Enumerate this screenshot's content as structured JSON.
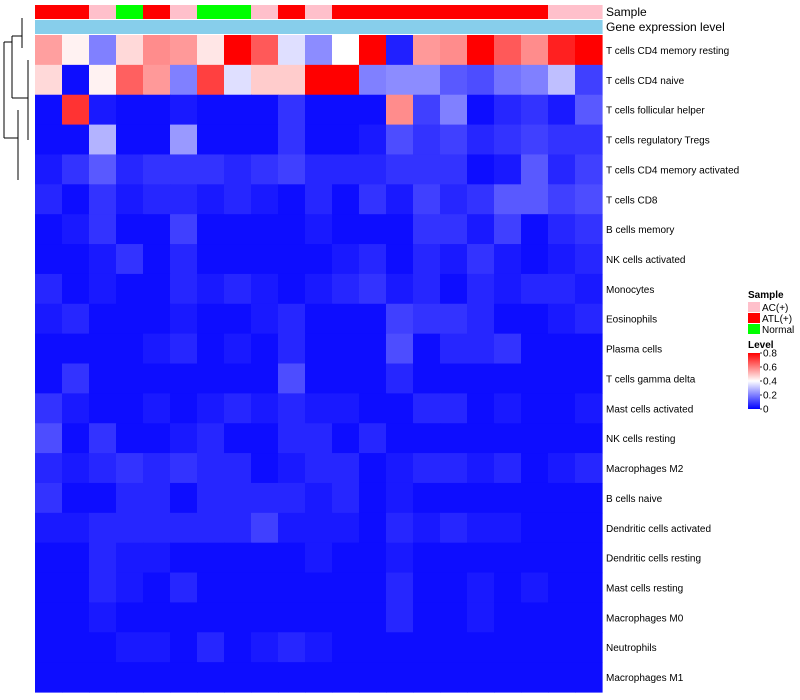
{
  "chart_data": {
    "type": "heatmap",
    "annotation_labels": {
      "sample": "Sample",
      "gene": "Gene expression level"
    },
    "samples": [
      "ATL(+)",
      "ATL(+)",
      "AC(+)",
      "Normal",
      "ATL(+)",
      "AC(+)",
      "Normal",
      "Normal",
      "AC(+)",
      "ATL(+)",
      "AC(+)",
      "ATL(+)",
      "ATL(+)",
      "ATL(+)",
      "ATL(+)",
      "ATL(+)",
      "ATL(+)",
      "ATL(+)",
      "ATL(+)",
      "AC(+)",
      "AC(+)"
    ],
    "gene_expression": [
      1,
      1,
      1,
      1,
      1,
      1,
      1,
      1,
      1,
      1,
      1,
      1,
      1,
      1,
      1,
      1,
      1,
      1,
      1,
      1,
      1
    ],
    "rows": [
      "T cells CD4 memory resting",
      "T cells CD4 naive",
      "T cells follicular helper",
      "T cells regulatory  Tregs",
      "T cells CD4 memory activated",
      "T cells CD8",
      "B cells memory",
      "NK cells activated",
      "Monocytes",
      "Eosinophils",
      "Plasma cells",
      "T cells gamma delta",
      "Mast cells activated",
      "NK cells resting",
      "Macrophages M2",
      "B cells naive",
      "Dendritic cells activated",
      "Dendritic cells resting",
      "Mast cells resting",
      "Macrophages M0",
      "Neutrophils",
      "Macrophages M1"
    ],
    "values": [
      [
        0.55,
        0.42,
        0.2,
        0.46,
        0.58,
        0.56,
        0.44,
        0.8,
        0.66,
        0.35,
        0.22,
        0.4,
        0.8,
        0.05,
        0.56,
        0.58,
        0.8,
        0.66,
        0.58,
        0.75,
        0.8
      ],
      [
        0.46,
        0.02,
        0.42,
        0.65,
        0.56,
        0.2,
        0.7,
        0.35,
        0.48,
        0.48,
        0.8,
        0.8,
        0.2,
        0.22,
        0.22,
        0.14,
        0.12,
        0.18,
        0.2,
        0.3,
        0.1
      ],
      [
        0.02,
        0.72,
        0.04,
        0.02,
        0.02,
        0.04,
        0.02,
        0.02,
        0.02,
        0.08,
        0.02,
        0.02,
        0.02,
        0.58,
        0.1,
        0.2,
        0.02,
        0.06,
        0.08,
        0.04,
        0.14
      ],
      [
        0.02,
        0.02,
        0.28,
        0.02,
        0.02,
        0.24,
        0.02,
        0.02,
        0.02,
        0.08,
        0.02,
        0.02,
        0.04,
        0.12,
        0.08,
        0.1,
        0.06,
        0.08,
        0.1,
        0.08,
        0.08
      ],
      [
        0.04,
        0.08,
        0.14,
        0.06,
        0.08,
        0.08,
        0.08,
        0.06,
        0.08,
        0.1,
        0.06,
        0.06,
        0.06,
        0.08,
        0.08,
        0.08,
        0.02,
        0.04,
        0.14,
        0.06,
        0.1
      ],
      [
        0.06,
        0.02,
        0.08,
        0.04,
        0.06,
        0.06,
        0.04,
        0.06,
        0.04,
        0.02,
        0.06,
        0.02,
        0.08,
        0.04,
        0.1,
        0.06,
        0.08,
        0.14,
        0.14,
        0.1,
        0.12
      ],
      [
        0.02,
        0.04,
        0.08,
        0.02,
        0.02,
        0.1,
        0.02,
        0.02,
        0.02,
        0.02,
        0.04,
        0.02,
        0.02,
        0.02,
        0.08,
        0.08,
        0.04,
        0.1,
        0.02,
        0.06,
        0.08
      ],
      [
        0.02,
        0.02,
        0.04,
        0.08,
        0.02,
        0.06,
        0.02,
        0.02,
        0.02,
        0.02,
        0.02,
        0.04,
        0.06,
        0.02,
        0.06,
        0.04,
        0.08,
        0.04,
        0.02,
        0.04,
        0.06
      ],
      [
        0.06,
        0.02,
        0.04,
        0.02,
        0.02,
        0.06,
        0.04,
        0.06,
        0.04,
        0.02,
        0.04,
        0.06,
        0.08,
        0.04,
        0.06,
        0.02,
        0.06,
        0.04,
        0.06,
        0.06,
        0.04
      ],
      [
        0.04,
        0.06,
        0.02,
        0.02,
        0.02,
        0.04,
        0.02,
        0.02,
        0.04,
        0.06,
        0.02,
        0.02,
        0.02,
        0.1,
        0.08,
        0.08,
        0.06,
        0.02,
        0.02,
        0.04,
        0.06
      ],
      [
        0.02,
        0.02,
        0.02,
        0.02,
        0.04,
        0.06,
        0.02,
        0.04,
        0.02,
        0.06,
        0.02,
        0.02,
        0.02,
        0.12,
        0.02,
        0.06,
        0.06,
        0.08,
        0.02,
        0.02,
        0.02
      ],
      [
        0.02,
        0.08,
        0.02,
        0.02,
        0.02,
        0.02,
        0.02,
        0.02,
        0.02,
        0.12,
        0.02,
        0.02,
        0.02,
        0.06,
        0.02,
        0.02,
        0.02,
        0.02,
        0.02,
        0.02,
        0.02
      ],
      [
        0.08,
        0.04,
        0.02,
        0.02,
        0.04,
        0.02,
        0.04,
        0.06,
        0.04,
        0.06,
        0.04,
        0.04,
        0.02,
        0.02,
        0.06,
        0.06,
        0.02,
        0.04,
        0.02,
        0.02,
        0.04
      ],
      [
        0.12,
        0.02,
        0.08,
        0.02,
        0.02,
        0.04,
        0.06,
        0.02,
        0.02,
        0.06,
        0.06,
        0.02,
        0.06,
        0.02,
        0.02,
        0.02,
        0.02,
        0.02,
        0.02,
        0.02,
        0.02
      ],
      [
        0.06,
        0.04,
        0.06,
        0.08,
        0.06,
        0.08,
        0.06,
        0.06,
        0.02,
        0.04,
        0.06,
        0.06,
        0.02,
        0.04,
        0.06,
        0.06,
        0.04,
        0.06,
        0.02,
        0.04,
        0.06
      ],
      [
        0.08,
        0.02,
        0.02,
        0.06,
        0.06,
        0.02,
        0.06,
        0.06,
        0.06,
        0.06,
        0.04,
        0.06,
        0.02,
        0.04,
        0.02,
        0.02,
        0.02,
        0.02,
        0.02,
        0.02,
        0.02
      ],
      [
        0.04,
        0.04,
        0.06,
        0.06,
        0.06,
        0.06,
        0.06,
        0.06,
        0.1,
        0.04,
        0.04,
        0.04,
        0.02,
        0.06,
        0.04,
        0.06,
        0.04,
        0.04,
        0.02,
        0.02,
        0.02
      ],
      [
        0.02,
        0.02,
        0.06,
        0.04,
        0.04,
        0.02,
        0.02,
        0.02,
        0.02,
        0.02,
        0.04,
        0.02,
        0.02,
        0.04,
        0.02,
        0.02,
        0.02,
        0.02,
        0.02,
        0.02,
        0.02
      ],
      [
        0.02,
        0.02,
        0.06,
        0.04,
        0.02,
        0.06,
        0.02,
        0.02,
        0.02,
        0.02,
        0.02,
        0.02,
        0.02,
        0.06,
        0.02,
        0.02,
        0.04,
        0.02,
        0.04,
        0.02,
        0.02
      ],
      [
        0.02,
        0.02,
        0.04,
        0.02,
        0.02,
        0.02,
        0.02,
        0.02,
        0.02,
        0.02,
        0.02,
        0.02,
        0.02,
        0.06,
        0.02,
        0.02,
        0.04,
        0.02,
        0.02,
        0.02,
        0.02
      ],
      [
        0.02,
        0.02,
        0.02,
        0.04,
        0.04,
        0.02,
        0.06,
        0.02,
        0.04,
        0.06,
        0.04,
        0.02,
        0.02,
        0.02,
        0.02,
        0.02,
        0.02,
        0.02,
        0.02,
        0.02,
        0.02
      ],
      [
        0.02,
        0.02,
        0.02,
        0.02,
        0.02,
        0.02,
        0.02,
        0.02,
        0.02,
        0.02,
        0.02,
        0.02,
        0.02,
        0.02,
        0.02,
        0.02,
        0.02,
        0.02,
        0.02,
        0.02,
        0.02
      ]
    ],
    "legend": {
      "sample_title": "Sample",
      "sample_entries": [
        {
          "label": "AC(+)",
          "color": "#ffc0cb"
        },
        {
          "label": "ATL(+)",
          "color": "#ff0000"
        },
        {
          "label": "Normal",
          "color": "#00ff00"
        }
      ],
      "level_title": "Level",
      "level_ticks": [
        "0.8",
        "0.6",
        "0.4",
        "0.2",
        "0"
      ],
      "level_tick_values": [
        0.8,
        0.6,
        0.4,
        0.2,
        0
      ],
      "range": [
        0,
        0.8
      ],
      "colors": {
        "low": "#0000ff",
        "mid": "#ffffff",
        "high": "#ff0000"
      },
      "gene_color": "#87ceeb"
    },
    "dendrogram": "row clustering tree on left"
  }
}
